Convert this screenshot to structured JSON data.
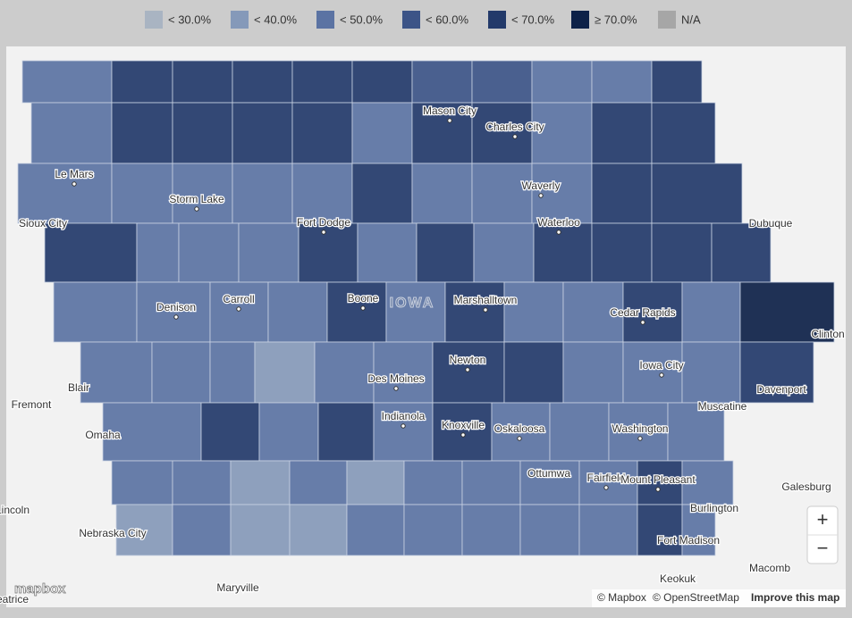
{
  "legend": {
    "items": [
      {
        "label": "< 30.0%",
        "color": "#a9b4c2"
      },
      {
        "label": "< 40.0%",
        "color": "#8599b9"
      },
      {
        "label": "< 50.0%",
        "color": "#5b73a3"
      },
      {
        "label": "< 60.0%",
        "color": "#3c5487"
      },
      {
        "label": "< 70.0%",
        "color": "#233a6a"
      },
      {
        "label": "≥ 70.0%",
        "color": "#0d2148"
      },
      {
        "label": "N/A",
        "color": "#a6a6a6"
      }
    ]
  },
  "map": {
    "state_label": "IOWA",
    "places": [
      "Mason City",
      "Charles City",
      "Le Mars",
      "Storm Lake",
      "Waverly",
      "Sioux City",
      "Fort Dodge",
      "Waterloo",
      "Dubuque",
      "Denison",
      "Carroll",
      "Boone",
      "Marshalltown",
      "Cedar Rapids",
      "Clinton",
      "Iowa City",
      "Blair",
      "Des Moines",
      "Newton",
      "Davenport",
      "Fremont",
      "Indianola",
      "Muscatine",
      "Omaha",
      "Knoxville",
      "Oskaloosa",
      "Washington",
      "Ottumwa",
      "Fairfield",
      "Mount Pleasant",
      "Galesburg",
      "Burlington",
      "Nebraska City",
      "Fort Madison",
      "Keokuk",
      "Macomb",
      "Maryville",
      "Lincoln",
      "Beatrice"
    ]
  },
  "controls": {
    "zoom_in": "+",
    "zoom_out": "−"
  },
  "attribution": {
    "logo": "mapbox",
    "mapbox": "© Mapbox",
    "osm": "© OpenStreetMap",
    "improve": "Improve this map"
  }
}
